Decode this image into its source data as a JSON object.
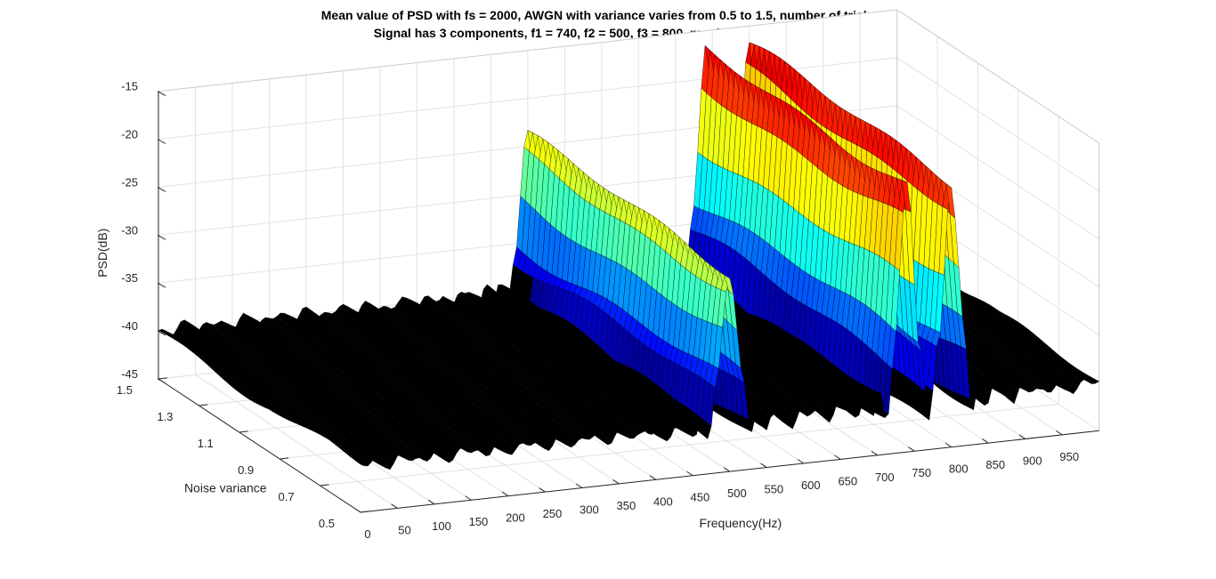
{
  "chart_data": {
    "type": "surface",
    "title": [
      "Mean value of PSD with fs = 2000, AWGN with variance varies from 0.5 to 1.5, number of trial = 50",
      "Signal has 3 components, f1 = 740, f2 = 500, f3 = 800, number of samples is 100"
    ],
    "xlabel": "Frequency(Hz)",
    "ylabel": "Noise variance",
    "zlabel": "PSD(dB)",
    "xlim": [
      0,
      1000
    ],
    "ylim": [
      0.5,
      1.5
    ],
    "zlim": [
      -45,
      -15
    ],
    "xticks": [
      "0",
      "50",
      "100",
      "150",
      "200",
      "250",
      "300",
      "350",
      "400",
      "450",
      "500",
      "550",
      "600",
      "650",
      "700",
      "750",
      "800",
      "850",
      "900",
      "950"
    ],
    "yticks": [
      "0.5",
      "0.7",
      "0.9",
      "1.1",
      "1.3",
      "1.5"
    ],
    "zticks": [
      "-15",
      "-20",
      "-25",
      "-30",
      "-35",
      "-40",
      "-45"
    ],
    "grid": true,
    "colormap": "jet",
    "peaks": [
      {
        "frequency": 500,
        "psd_db": -24
      },
      {
        "frequency": 740,
        "psd_db": -17.5
      },
      {
        "frequency": 800,
        "psd_db": -17.5
      }
    ],
    "noise_floor_db": -40,
    "colors": {
      "background": "#ffffff",
      "grid": "#e2e2e2",
      "axis": "#262626",
      "edge": "#000000"
    }
  }
}
